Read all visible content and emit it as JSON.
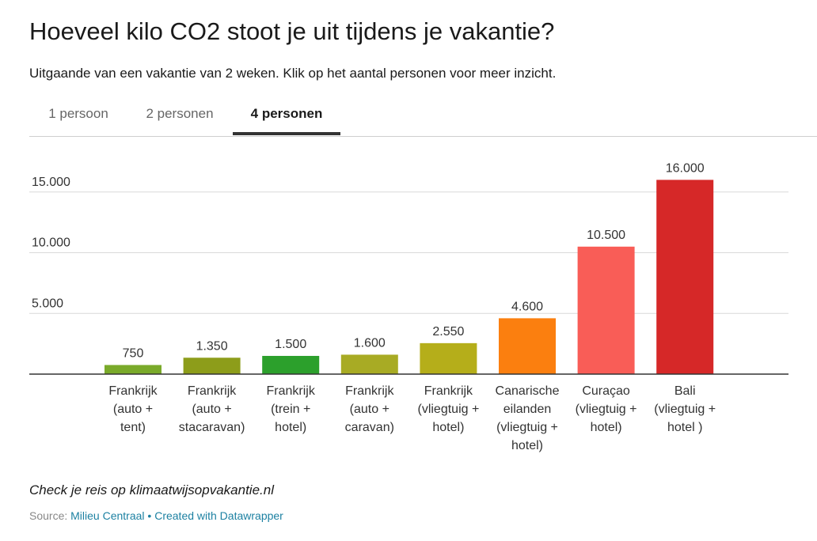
{
  "title": "Hoeveel kilo CO2 stoot je uit tijdens je vakantie?",
  "subtitle": "Uitgaande van een vakantie van 2 weken. Klik op het aantal personen voor meer inzicht.",
  "tabs": [
    {
      "label": "1 persoon",
      "active": false
    },
    {
      "label": "2 personen",
      "active": false
    },
    {
      "label": "4 personen",
      "active": true
    }
  ],
  "note": "Check je reis op klimaatwijsopvakantie.nl",
  "source": {
    "prefix": "Source: ",
    "source_link": "Milieu Centraal",
    "separator": " • ",
    "credit_link": "Created with Datawrapper"
  },
  "chart_data": {
    "type": "bar",
    "categories": [
      [
        "Frankrijk",
        "(auto +",
        "tent)"
      ],
      [
        "Frankrijk",
        "(auto +",
        "stacaravan)"
      ],
      [
        "Frankrijk",
        "(trein +",
        "hotel)"
      ],
      [
        "Frankrijk",
        "(auto +",
        "caravan)"
      ],
      [
        "Frankrijk",
        "(vliegtuig +",
        "hotel)"
      ],
      [
        "Canarische",
        "eilanden",
        "(vliegtuig +",
        "hotel)"
      ],
      [
        "Curaçao",
        "(vliegtuig +",
        "hotel)"
      ],
      [
        "Bali",
        "(vliegtuig +",
        "hotel )"
      ]
    ],
    "values": [
      750,
      1350,
      1500,
      1600,
      2550,
      4600,
      10500,
      16000
    ],
    "value_labels": [
      "750",
      "1.350",
      "1.500",
      "1.600",
      "2.550",
      "4.600",
      "10.500",
      "16.000"
    ],
    "colors": [
      "#7aaa2a",
      "#8d9d1a",
      "#2ca02c",
      "#a8ab24",
      "#b5ae1a",
      "#fb7f0f",
      "#f95d57",
      "#d62828"
    ],
    "y_ticks": [
      {
        "value": 5000,
        "label": "5.000"
      },
      {
        "value": 10000,
        "label": "10.000"
      },
      {
        "value": 15000,
        "label": "15.000"
      }
    ],
    "ylim": [
      0,
      16000
    ],
    "grid": true,
    "legend": "none"
  }
}
